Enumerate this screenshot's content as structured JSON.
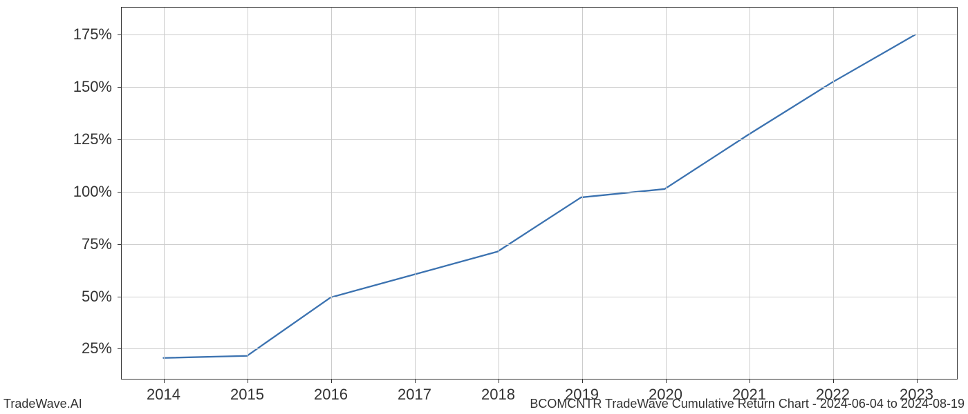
{
  "chart": {
    "type": "line",
    "x_values": [
      2014,
      2015,
      2016,
      2017,
      2018,
      2019,
      2020,
      2021,
      2022,
      2023
    ],
    "y_values": [
      20,
      21,
      49,
      60,
      71,
      97,
      101,
      127,
      152,
      175
    ],
    "line_color": "#3b72b0",
    "line_width": 2.3,
    "x_ticks": [
      2014,
      2015,
      2016,
      2017,
      2018,
      2019,
      2020,
      2021,
      2022,
      2023
    ],
    "x_tick_labels": [
      "2014",
      "2015",
      "2016",
      "2017",
      "2018",
      "2019",
      "2020",
      "2021",
      "2022",
      "2023"
    ],
    "y_ticks": [
      25,
      50,
      75,
      100,
      125,
      150,
      175
    ],
    "y_tick_labels": [
      "25%",
      "50%",
      "75%",
      "100%",
      "125%",
      "150%",
      "175%"
    ],
    "xlim": [
      2013.5,
      2023.5
    ],
    "ylim": [
      10,
      188
    ],
    "background_color": "#ffffff",
    "grid_color": "#cccccc",
    "border_color": "#333333",
    "tick_fontsize": 22,
    "tick_color": "#333333"
  },
  "footer": {
    "left": "TradeWave.AI",
    "right": "BCOMCNTR TradeWave Cumulative Return Chart - 2024-06-04 to 2024-08-19",
    "fontsize": 18,
    "color": "#333333"
  }
}
